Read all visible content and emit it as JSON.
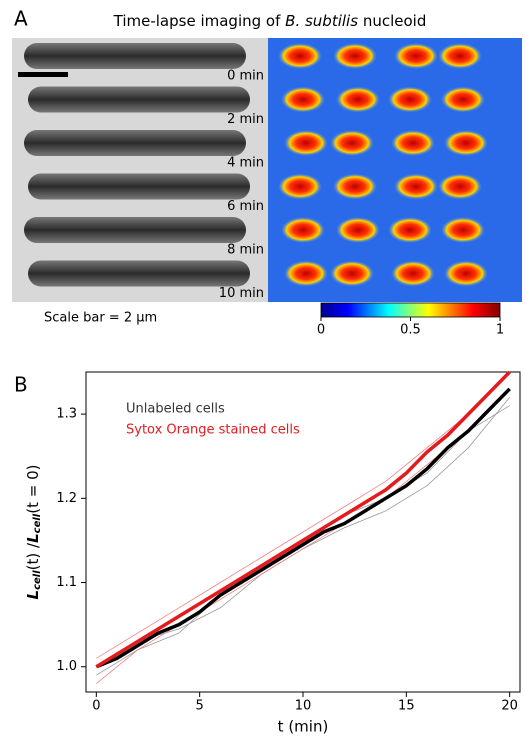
{
  "panel_a": {
    "label": "A",
    "title": {
      "prefix": "Time-lapse imaging of",
      "species": "B. subtilis",
      "suffix": "nucleoid"
    },
    "time_labels": [
      "0 min",
      "2 min",
      "4 min",
      "6 min",
      "8 min",
      "10 min"
    ],
    "scale_bar": "Scale bar = 2 μm",
    "colorbar": {
      "lim": [
        0,
        1
      ],
      "ticks": [
        0,
        0.5,
        1
      ]
    }
  },
  "chart_data": {
    "type": "line",
    "panel_label": "B",
    "x_label": "t (min)",
    "y_label": [
      "L",
      "cell",
      "(t) /",
      "L",
      "cell",
      "(t = 0)"
    ],
    "xlim": [
      -0.5,
      20.5
    ],
    "ylim": [
      0.97,
      1.35
    ],
    "xticks": [
      0,
      5,
      10,
      15,
      20
    ],
    "yticks": [
      {
        "value": 1,
        "label": "1.0"
      },
      1.1,
      1.2,
      1.3
    ],
    "legend": "upper left",
    "x": [
      0,
      1,
      2,
      3,
      4,
      5,
      6,
      7,
      8,
      9,
      10,
      11,
      12,
      13,
      14,
      15,
      16,
      17,
      18,
      19,
      20
    ],
    "series": [
      {
        "color": "#999999",
        "x": [
          0,
          2,
          4,
          6,
          8,
          10,
          12,
          14,
          16,
          18,
          20
        ],
        "values": [
          1.0,
          1.03,
          1.045,
          1.07,
          1.11,
          1.14,
          1.165,
          1.185,
          1.215,
          1.26,
          1.32
        ]
      },
      {
        "color": "#999999",
        "x": [
          0,
          2,
          4,
          6,
          8,
          10,
          12,
          14,
          16,
          18,
          20
        ],
        "values": [
          0.99,
          1.02,
          1.04,
          1.085,
          1.12,
          1.15,
          1.18,
          1.2,
          1.23,
          1.28,
          1.31
        ]
      },
      {
        "color": "#f08080",
        "x": [
          0,
          2,
          4,
          6,
          8,
          10,
          12,
          14,
          16,
          18,
          20
        ],
        "values": [
          1.01,
          1.04,
          1.07,
          1.1,
          1.13,
          1.16,
          1.19,
          1.22,
          1.26,
          1.3,
          1.35
        ]
      },
      {
        "color": "#f08080",
        "x": [
          0,
          2,
          4,
          6,
          8,
          10,
          12,
          14,
          16,
          18,
          20
        ],
        "values": [
          0.98,
          1.02,
          1.05,
          1.08,
          1.11,
          1.14,
          1.17,
          1.2,
          1.24,
          1.28,
          1.33
        ]
      },
      {
        "name": "Unlabeled cells",
        "color": "#000000",
        "values": [
          1.0,
          1.01,
          1.025,
          1.04,
          1.05,
          1.065,
          1.085,
          1.1,
          1.115,
          1.13,
          1.145,
          1.16,
          1.17,
          1.185,
          1.2,
          1.215,
          1.235,
          1.26,
          1.28,
          1.305,
          1.33
        ]
      },
      {
        "name": "Sytox Orange stained cells",
        "color": "#e41a1c",
        "values": [
          1.0,
          1.015,
          1.03,
          1.045,
          1.06,
          1.075,
          1.09,
          1.105,
          1.12,
          1.135,
          1.15,
          1.165,
          1.18,
          1.195,
          1.21,
          1.23,
          1.255,
          1.275,
          1.3,
          1.325,
          1.35
        ]
      }
    ]
  }
}
